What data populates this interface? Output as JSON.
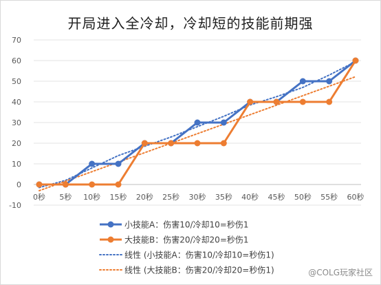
{
  "chart_data": {
    "type": "line",
    "title": "开局进入全冷却，冷却短的技能前期强",
    "categories": [
      "0秒",
      "5秒",
      "10秒",
      "15秒",
      "20秒",
      "25秒",
      "30秒",
      "35秒",
      "40秒",
      "45秒",
      "50秒",
      "55秒",
      "60秒"
    ],
    "ylim": [
      -10,
      70
    ],
    "yticks": [
      -10,
      0,
      10,
      20,
      30,
      40,
      50,
      60,
      70
    ],
    "grid": true,
    "legend_position": "bottom",
    "series": [
      {
        "name": "小技能A：伤害10/冷却10=秒伤1",
        "color": "#4472C4",
        "values": [
          0,
          0,
          10,
          10,
          20,
          20,
          30,
          30,
          40,
          40,
          50,
          50,
          60
        ]
      },
      {
        "name": "大技能B：伤害20/冷却20=秒伤1",
        "color": "#ED7D31",
        "values": [
          0,
          0,
          0,
          0,
          20,
          20,
          20,
          20,
          40,
          40,
          40,
          40,
          60
        ]
      }
    ],
    "trendlines": [
      {
        "name": "线性 (小技能A：伤害10/冷却10=秒伤1)",
        "color": "#4472C4",
        "type": "polynomial",
        "values": [
          -1.5,
          2.0,
          8.0,
          14.0,
          18.5,
          23.0,
          28.0,
          33.0,
          38.5,
          42.5,
          47.0,
          53.0,
          59.5
        ]
      },
      {
        "name": "线性 (大技能B：伤害20/冷却20=秒伤1)",
        "color": "#ED7D31",
        "type": "linear",
        "values": [
          -3.0,
          1.6,
          6.2,
          10.8,
          15.4,
          20.0,
          24.6,
          29.2,
          33.8,
          38.4,
          43.0,
          47.6,
          52.2
        ]
      }
    ]
  },
  "watermark": "@COLG玩家社区"
}
